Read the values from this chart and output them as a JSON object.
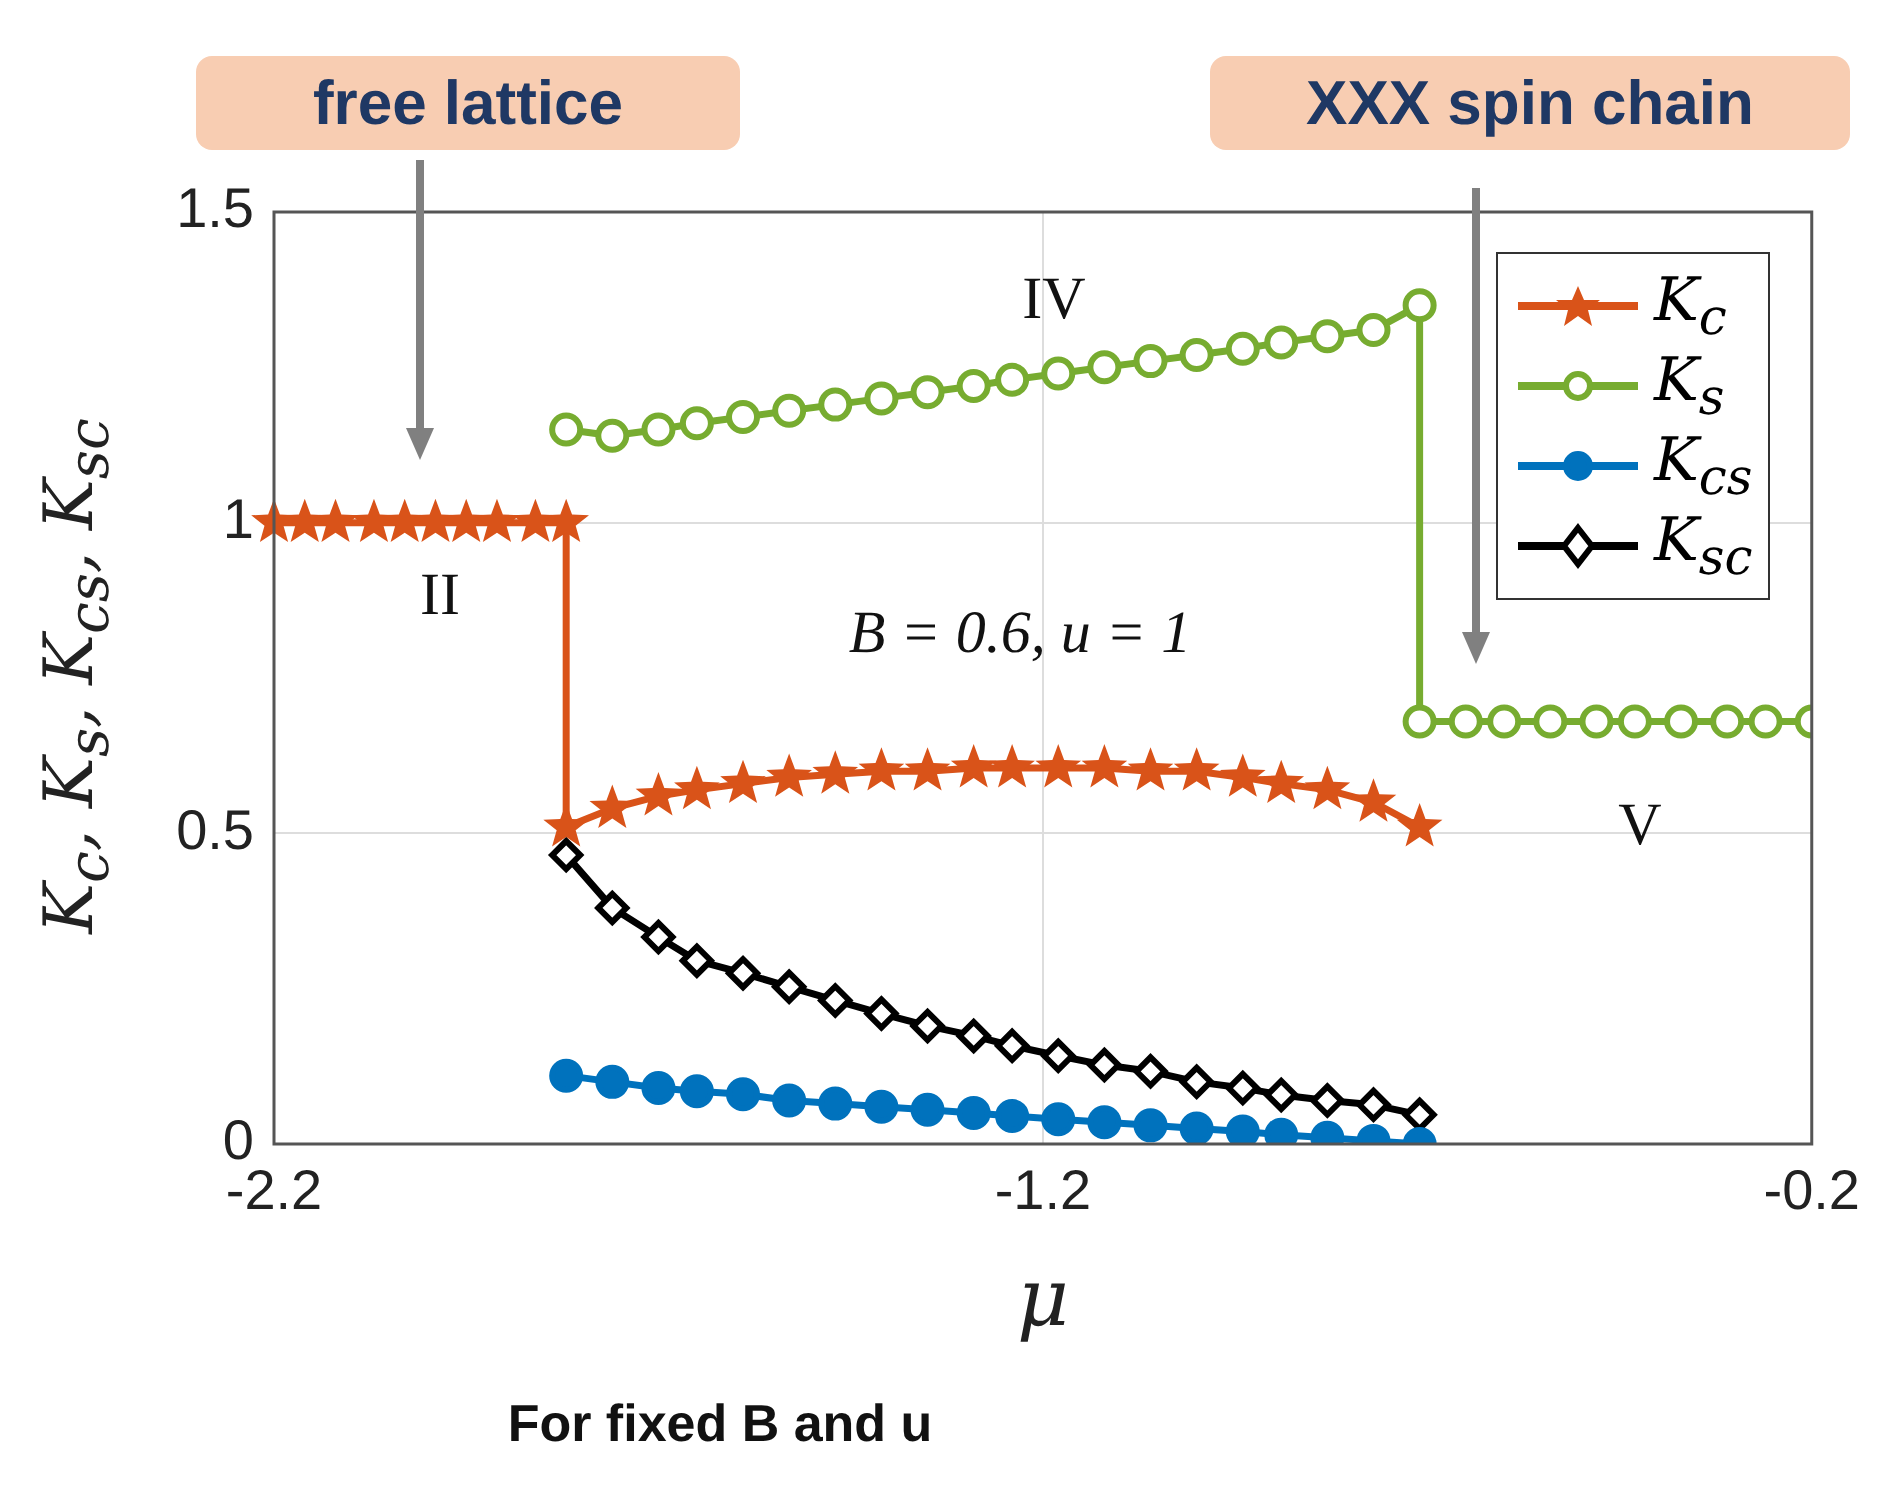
{
  "chart_data": {
    "type": "line",
    "xlabel": "μ",
    "ylabel": "K$_{c}$, K$_{s}$, K$_{cs}$, K$_{sc}$",
    "xlim": [
      -2.2,
      -0.2
    ],
    "xticks": [
      -2.2,
      -1.2,
      -0.2
    ],
    "ylim": [
      0,
      1.5
    ],
    "yticks": [
      0,
      0.5,
      1,
      1.5
    ],
    "grid": true,
    "legend": "top right",
    "series": [
      {
        "name": "K$_{c}$",
        "color": "#d95319",
        "marker": "star",
        "x": [
          -2.2,
          -2.16,
          -2.12,
          -2.07,
          -2.03,
          -1.99,
          -1.95,
          -1.91,
          -1.86,
          -1.82,
          -1.82,
          -1.76,
          -1.7,
          -1.65,
          -1.59,
          -1.53,
          -1.47,
          -1.41,
          -1.35,
          -1.29,
          -1.24,
          -1.18,
          -1.12,
          -1.06,
          -1.0,
          -0.94,
          -0.89,
          -0.83,
          -0.77,
          -0.71
        ],
        "values": [
          1,
          1,
          1,
          1,
          1,
          1,
          1,
          1,
          1,
          1,
          0.51,
          0.54,
          0.56,
          0.57,
          0.58,
          0.59,
          0.595,
          0.6,
          0.6,
          0.605,
          0.605,
          0.605,
          0.605,
          0.6,
          0.6,
          0.59,
          0.58,
          0.57,
          0.55,
          0.51
        ]
      },
      {
        "name": "K$_{s}$",
        "color": "#77ac30",
        "marker": "circle",
        "x": [
          -1.82,
          -1.76,
          -1.7,
          -1.65,
          -1.59,
          -1.53,
          -1.47,
          -1.41,
          -1.35,
          -1.29,
          -1.24,
          -1.18,
          -1.12,
          -1.06,
          -1.0,
          -0.94,
          -0.89,
          -0.83,
          -0.77,
          -0.71,
          -0.71,
          -0.65,
          -0.6,
          -0.54,
          -0.48,
          -0.43,
          -0.37,
          -0.31,
          -0.26,
          -0.2
        ],
        "values": [
          1.15,
          1.14,
          1.15,
          1.16,
          1.17,
          1.18,
          1.19,
          1.2,
          1.21,
          1.22,
          1.23,
          1.24,
          1.25,
          1.26,
          1.27,
          1.28,
          1.29,
          1.3,
          1.31,
          1.35,
          0.68,
          0.68,
          0.68,
          0.68,
          0.68,
          0.68,
          0.68,
          0.68,
          0.68,
          0.68
        ]
      },
      {
        "name": "K$_{cs}$",
        "color": "#0072bd",
        "marker": "circle",
        "x": [
          -1.82,
          -1.76,
          -1.7,
          -1.65,
          -1.59,
          -1.53,
          -1.47,
          -1.41,
          -1.35,
          -1.29,
          -1.24,
          -1.18,
          -1.12,
          -1.06,
          -1.0,
          -0.94,
          -0.89,
          -0.83,
          -0.77,
          -0.71
        ],
        "values": [
          0.11,
          0.1,
          0.09,
          0.085,
          0.08,
          0.07,
          0.065,
          0.06,
          0.055,
          0.05,
          0.045,
          0.04,
          0.035,
          0.03,
          0.025,
          0.02,
          0.015,
          0.01,
          0.005,
          0.0
        ]
      },
      {
        "name": "K$_{sc}$",
        "color": "#000000",
        "marker": "diamond",
        "x": [
          -1.82,
          -1.76,
          -1.7,
          -1.65,
          -1.59,
          -1.53,
          -1.47,
          -1.41,
          -1.35,
          -1.29,
          -1.24,
          -1.18,
          -1.12,
          -1.06,
          -1.0,
          -0.94,
          -0.89,
          -0.83,
          -0.77,
          -0.71
        ],
        "values": [
          0.465,
          0.38,
          0.333,
          0.295,
          0.275,
          0.253,
          0.231,
          0.21,
          0.19,
          0.174,
          0.158,
          0.142,
          0.127,
          0.117,
          0.1,
          0.09,
          0.079,
          0.07,
          0.063,
          0.047
        ]
      }
    ],
    "annotations": [
      "free lattice",
      "XXX spin chain",
      "II",
      "IV",
      "V",
      "B = 0.6, u = 1",
      "For fixed B and u"
    ]
  }
}
